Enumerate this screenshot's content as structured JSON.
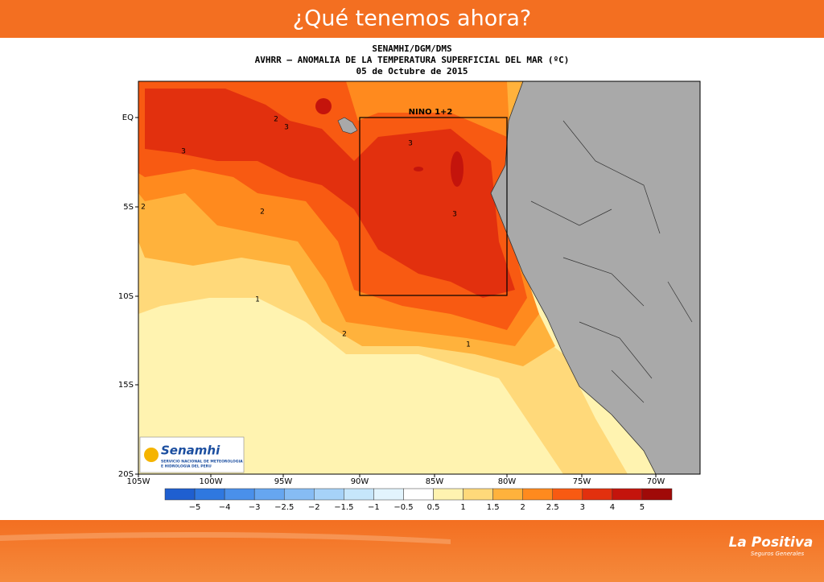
{
  "slide": {
    "title": "¿Qué tenemos ahora?"
  },
  "map": {
    "title_lines": [
      "SENAMHI/DGM/DMS",
      "AVHRR – ANOMALIA DE LA TEMPERATURA SUPERFICIAL DEL MAR (ºC)",
      "05 de Octubre de 2015"
    ],
    "lat_labels": [
      "EQ",
      "5S",
      "10S",
      "15S",
      "20S"
    ],
    "lon_labels": [
      "105W",
      "100W",
      "95W",
      "90W",
      "85W",
      "80W",
      "75W",
      "70W"
    ],
    "box_label": "NINO 1+2",
    "contour_labels": [
      "2",
      "3",
      "3",
      "3",
      "2",
      "2",
      "1",
      "2",
      "1",
      "3"
    ]
  },
  "colorbar": {
    "labels": [
      "−5",
      "−4",
      "−3",
      "−2.5",
      "−2",
      "−1.5",
      "−1",
      "−0.5",
      "0.5",
      "1",
      "1.5",
      "2",
      "2.5",
      "3",
      "4",
      "5"
    ],
    "colors": [
      "#1f5fd0",
      "#2f78e0",
      "#4a90ea",
      "#66a6f0",
      "#86bcf4",
      "#a6d2f8",
      "#c6e6fb",
      "#e2f4fd",
      "#ffffff",
      "#fff3b0",
      "#ffd97a",
      "#ffb23c",
      "#ff8a1e",
      "#f85a12",
      "#e2300e",
      "#c4140c",
      "#a00a08"
    ]
  },
  "logo": {
    "name": "Senamhi",
    "line1": "SERVICIO NACIONAL DE METEOROLOGIA",
    "line2": "E HIDROLOGIA DEL PERU"
  },
  "brand": {
    "name": "La Positiva",
    "tagline": "Seguros Generales"
  }
}
